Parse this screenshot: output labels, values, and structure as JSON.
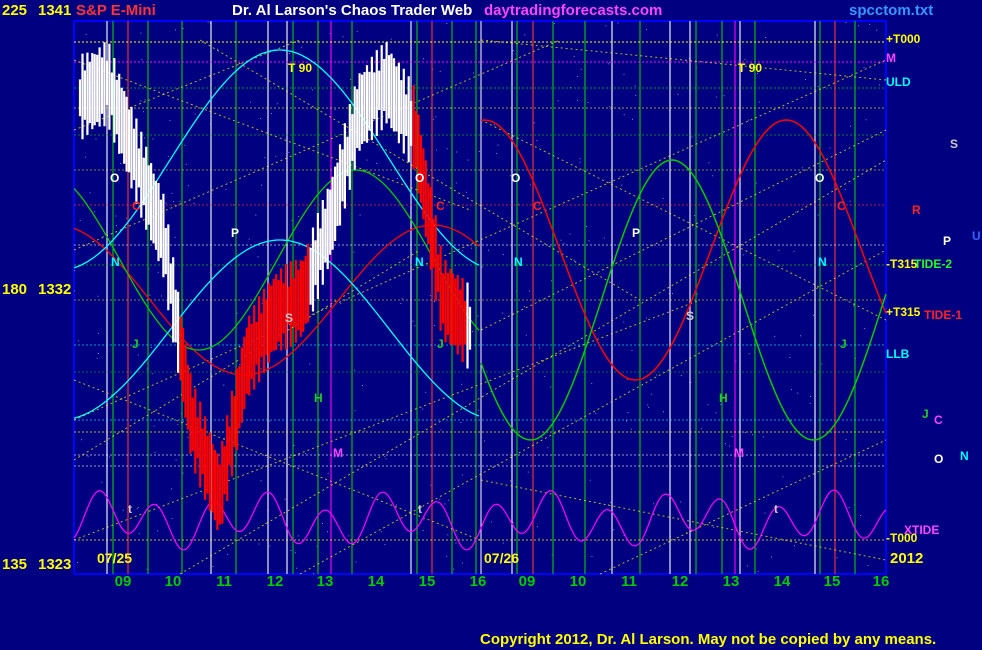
{
  "header": {
    "scale_left": "225",
    "price_top": "1341",
    "instrument": "S&P E-Mini",
    "title": "Dr. Al Larson's Chaos Trader Web",
    "site": "daytradingforecasts.com",
    "file": "spcctom.txt"
  },
  "left_axis": {
    "mid_scale": "180",
    "mid_price": "1332",
    "bottom_scale": "135",
    "bottom_price": "1323"
  },
  "dates": {
    "day1": "07/25",
    "day2": "07/26",
    "year": "2012"
  },
  "copyright": "Copyright 2012, Dr. Al Larson. May not be copied by any means.",
  "right_labels": {
    "t000_top": "+T000",
    "m": "M",
    "uld": "ULD",
    "s": "S",
    "r": "R",
    "p": "P",
    "u": "U",
    "t315_minus": "-T315",
    "tide2": "TIDE-2",
    "t315_plus": "+T315",
    "tide1": "TIDE-1",
    "llb": "LLB",
    "j": "J",
    "c": "C",
    "o": "O",
    "n": "N",
    "xtide": "XTIDE",
    "t000_bottom": "-T000"
  },
  "panel_labels": [
    "T 90",
    "O",
    "C",
    "P",
    "N",
    "J",
    "S",
    "H",
    "M",
    "t"
  ],
  "colors": {
    "background": "#000080",
    "price_bar": "#ffffff",
    "price_bar_down": "#ff0000",
    "cyan": "#00ffff",
    "green": "#00cc00",
    "red": "#ff0000",
    "yellow": "#ffff00",
    "magenta": "#ff00ff"
  },
  "chart_data": {
    "type": "line",
    "title": "S&P E-Mini",
    "y_price_ticks": [
      1341,
      1332,
      1323
    ],
    "y_scale_ticks": [
      225,
      180,
      135
    ],
    "x_hour_ticks": [
      "09",
      "10",
      "11",
      "12",
      "13",
      "14",
      "15",
      "16",
      "09",
      "10",
      "11",
      "12",
      "13",
      "14",
      "15",
      "16"
    ],
    "sessions": [
      "07/25",
      "07/26"
    ],
    "year": "2012",
    "ylim": [
      1323,
      1341
    ],
    "series": [
      {
        "name": "price",
        "session": "07/25",
        "x": [
          "09",
          "09",
          "10",
          "10",
          "11",
          "11",
          "12",
          "12",
          "13",
          "13",
          "14",
          "14",
          "15",
          "15",
          "16"
        ],
        "values": [
          1338.5,
          1339,
          1336.5,
          1334,
          1328,
          1325.5,
          1330,
          1331.5,
          1332,
          1334.5,
          1338,
          1339,
          1337.5,
          1332,
          1331
        ]
      },
      {
        "name": "TIDE-2",
        "values": []
      },
      {
        "name": "TIDE-1",
        "values": []
      },
      {
        "name": "XTIDE",
        "values": []
      }
    ]
  }
}
